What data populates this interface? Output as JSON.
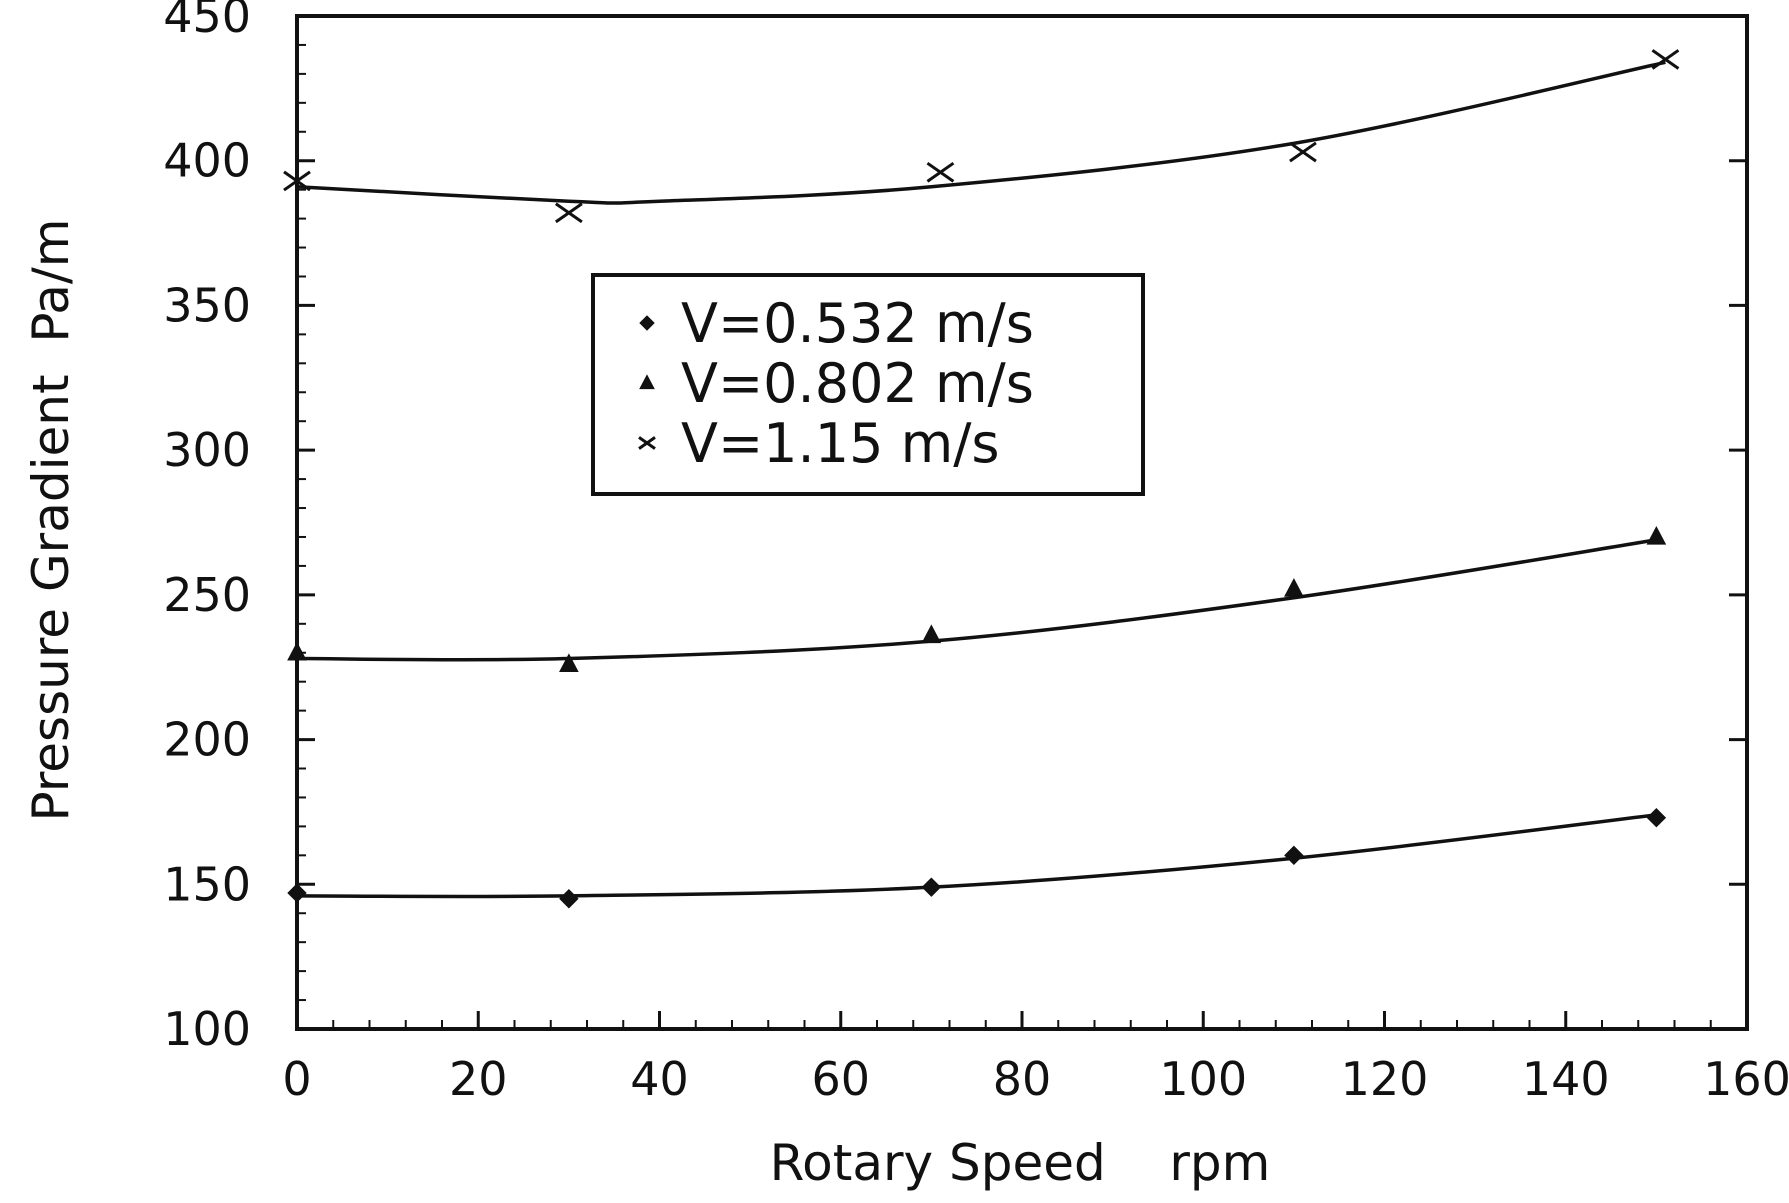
{
  "chart_data": {
    "type": "scatter",
    "xlabel": "Rotary Speed    rpm",
    "ylabel": "Pressure Gradient  Pa/m",
    "xlim": [
      0,
      160
    ],
    "ylim": [
      100,
      450
    ],
    "xticks": [
      0,
      20,
      40,
      60,
      80,
      100,
      120,
      140,
      160
    ],
    "yticks": [
      100,
      150,
      200,
      250,
      300,
      350,
      400,
      450
    ],
    "xtick_labels": [
      "0",
      "20",
      "40",
      "60",
      "80",
      "100",
      "120",
      "140",
      "160"
    ],
    "ytick_labels": [
      "100",
      "150",
      "200",
      "250",
      "300",
      "350",
      "400",
      "450"
    ],
    "legend_position": "upper-center",
    "grid": false,
    "series": [
      {
        "name": "V=0.532 m/s",
        "marker": "diamond",
        "x": [
          0,
          30,
          70,
          110,
          150
        ],
        "y": [
          147,
          145,
          149,
          160,
          173
        ],
        "fit_curve": {
          "x": [
            0,
            30,
            70,
            110,
            150
          ],
          "y": [
            146,
            146,
            149,
            159,
            174
          ]
        }
      },
      {
        "name": "V=0.802 m/s",
        "marker": "triangle",
        "x": [
          0,
          30,
          70,
          110,
          150
        ],
        "y": [
          230,
          226,
          236,
          252,
          270
        ],
        "fit_curve": {
          "x": [
            0,
            30,
            70,
            110,
            150
          ],
          "y": [
            228,
            228,
            234,
            249,
            269
          ]
        }
      },
      {
        "name": "V=1.15 m/s",
        "marker": "x",
        "x": [
          0,
          30,
          71,
          111,
          151
        ],
        "y": [
          393,
          382,
          396,
          403,
          435
        ],
        "fit_curve": {
          "x": [
            0,
            30,
            40,
            70,
            110,
            151
          ],
          "y": [
            391,
            386,
            386,
            391,
            406,
            434
          ]
        }
      }
    ]
  },
  "colors": {
    "ink": "#111111",
    "background": "#ffffff"
  }
}
